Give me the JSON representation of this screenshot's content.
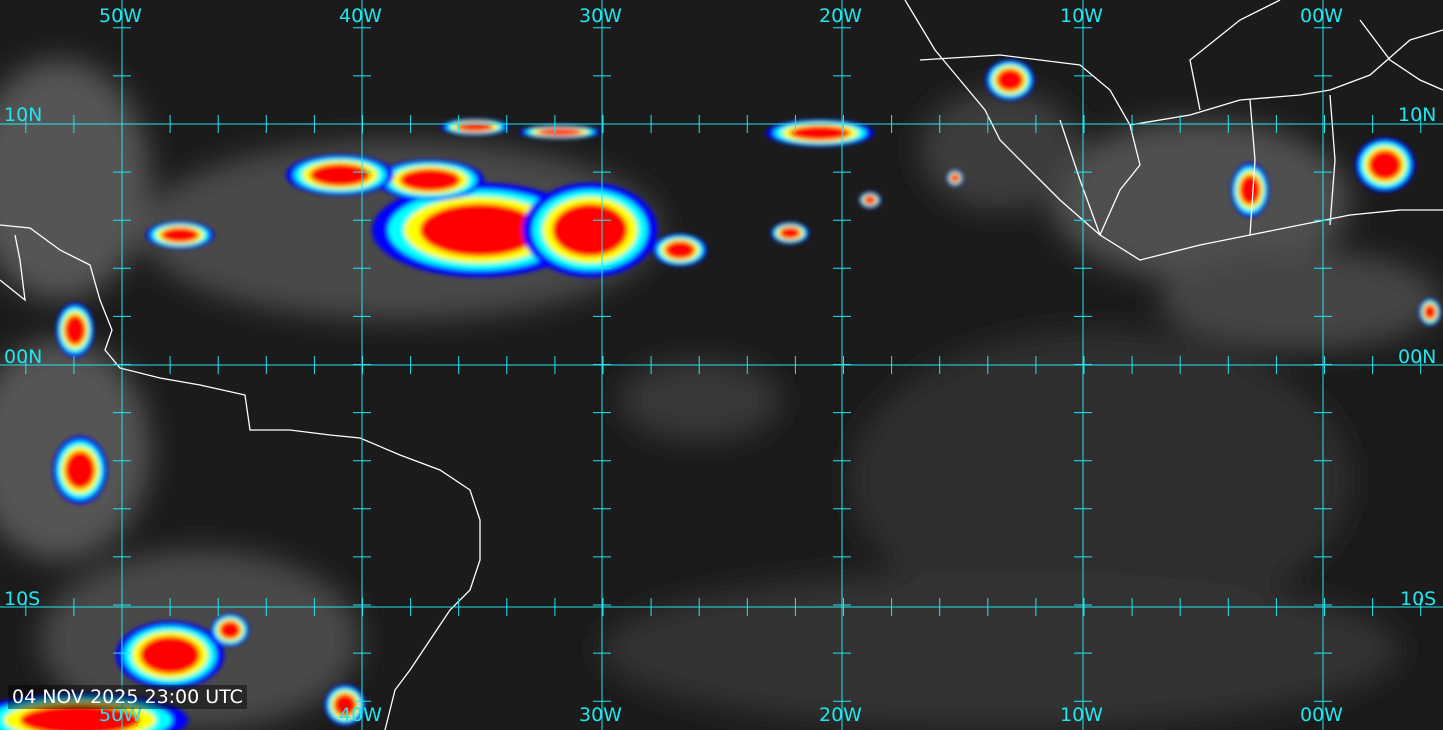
{
  "map": {
    "type": "infrared satellite imagery",
    "timestamp": "04 NOV 2025 23:00 UTC",
    "grid_color": "#22e6ee",
    "coastline_color": "#ffffff",
    "longitude_labels_top": [
      "50W",
      "40W",
      "30W",
      "20W",
      "10W",
      "00W"
    ],
    "longitude_labels_bottom": [
      "50W",
      "40W",
      "30W",
      "20W",
      "10W",
      "00W"
    ],
    "latitude_labels_left": [
      "10N",
      "00N",
      "10S"
    ],
    "latitude_labels_right": [
      "10N",
      "00N",
      "10S"
    ],
    "colour_scale": [
      "#0000ff",
      "#00ffff",
      "#ffff00",
      "#ff0000",
      "#8b0000"
    ]
  }
}
